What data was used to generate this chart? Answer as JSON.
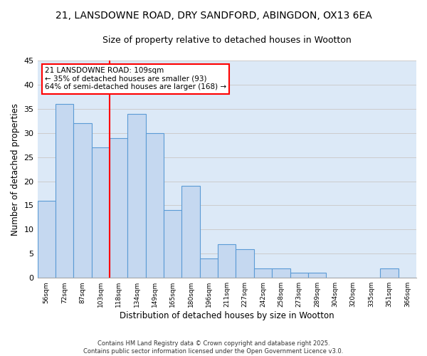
{
  "title_line1": "21, LANSDOWNE ROAD, DRY SANDFORD, ABINGDON, OX13 6EA",
  "title_line2": "Size of property relative to detached houses in Wootton",
  "xlabel": "Distribution of detached houses by size in Wootton",
  "ylabel": "Number of detached properties",
  "categories": [
    "56sqm",
    "72sqm",
    "87sqm",
    "103sqm",
    "118sqm",
    "134sqm",
    "149sqm",
    "165sqm",
    "180sqm",
    "196sqm",
    "211sqm",
    "227sqm",
    "242sqm",
    "258sqm",
    "273sqm",
    "289sqm",
    "304sqm",
    "320sqm",
    "335sqm",
    "351sqm",
    "366sqm"
  ],
  "values": [
    16,
    36,
    32,
    27,
    29,
    34,
    30,
    14,
    19,
    4,
    7,
    6,
    2,
    2,
    1,
    1,
    0,
    0,
    0,
    2,
    0
  ],
  "bar_color": "#c5d8f0",
  "bar_edge_color": "#5b9bd5",
  "vline_color": "red",
  "annotation_text": "21 LANSDOWNE ROAD: 109sqm\n← 35% of detached houses are smaller (93)\n64% of semi-detached houses are larger (168) →",
  "annotation_box_color": "white",
  "annotation_box_edge": "red",
  "ylim": [
    0,
    45
  ],
  "yticks": [
    0,
    5,
    10,
    15,
    20,
    25,
    30,
    35,
    40,
    45
  ],
  "grid_color": "#cccccc",
  "bg_color": "#dce9f7",
  "footer": "Contains HM Land Registry data © Crown copyright and database right 2025.\nContains public sector information licensed under the Open Government Licence v3.0.",
  "title_fontsize": 10,
  "subtitle_fontsize": 9,
  "xlabel_fontsize": 8.5,
  "ylabel_fontsize": 8.5,
  "annotation_fontsize": 7.5,
  "footer_fontsize": 6.0
}
